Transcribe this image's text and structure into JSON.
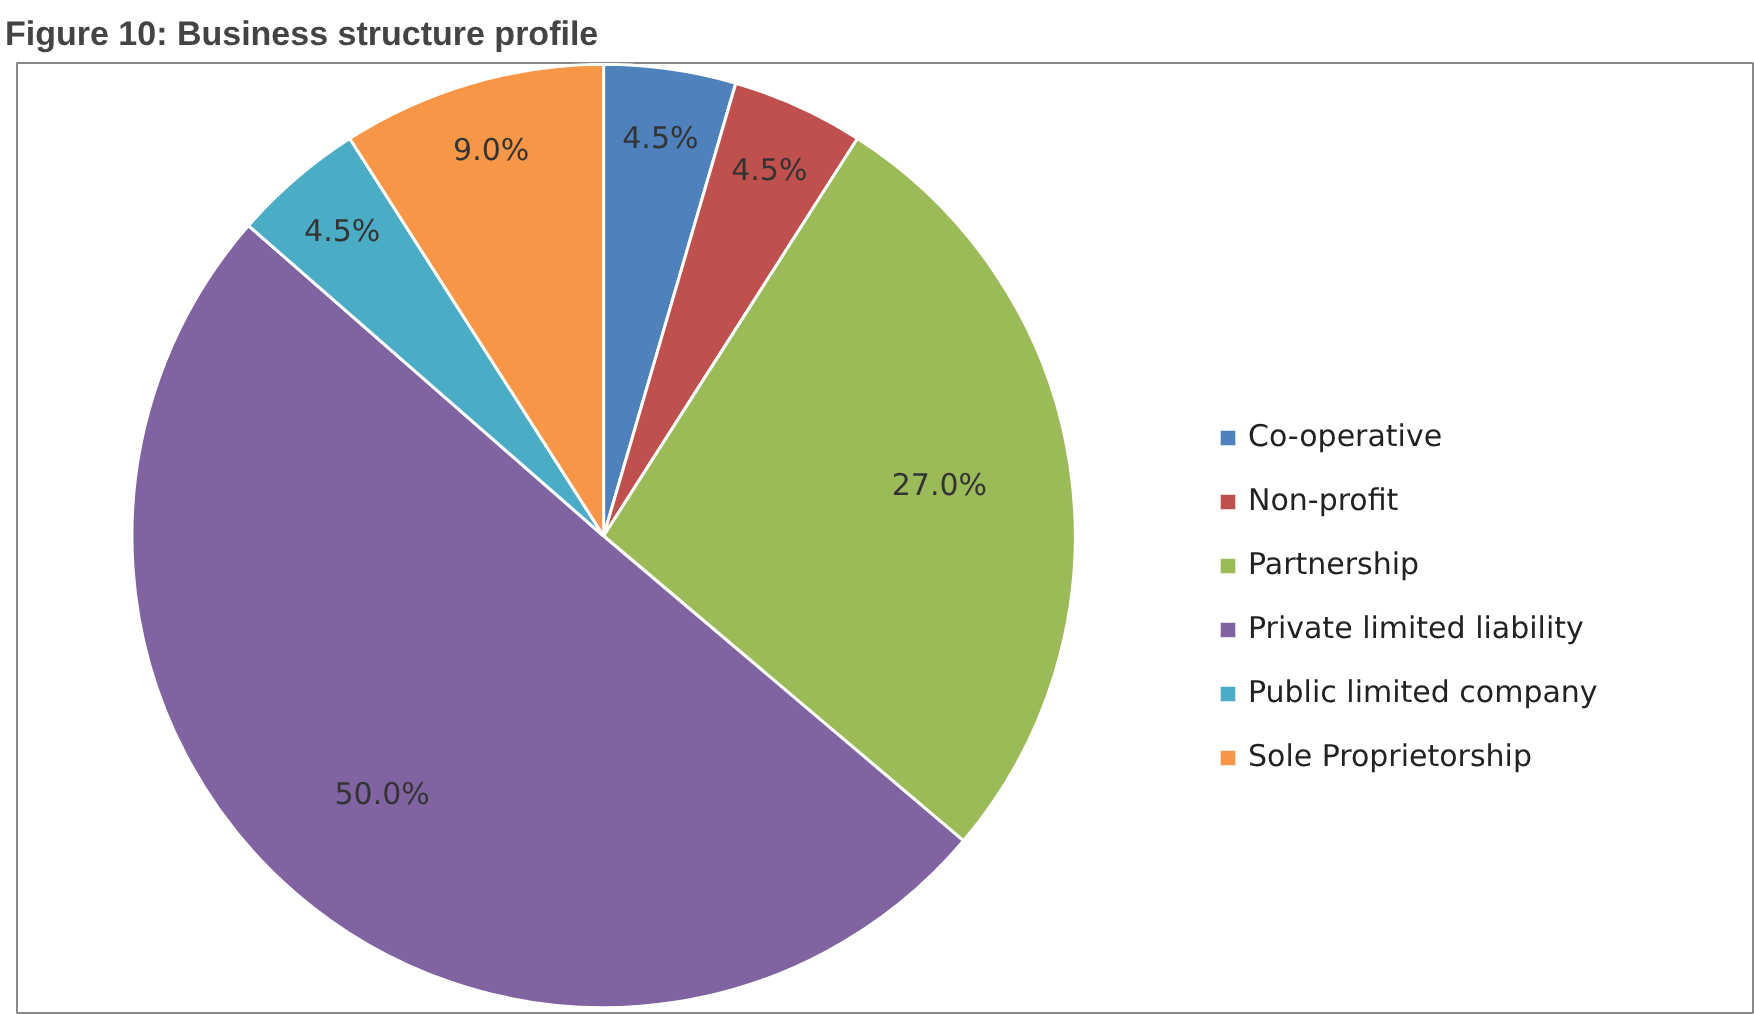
{
  "chart_data": {
    "type": "pie",
    "title": "Figure 10: Business structure profile",
    "categories": [
      "Co-operative",
      "Non-profit",
      "Partnership",
      "Private limited liability",
      "Public limited company",
      "Sole Proprietorship"
    ],
    "values": [
      4.5,
      4.5,
      27.0,
      50.0,
      4.5,
      9.0
    ],
    "value_labels": [
      "4.5%",
      "4.5%",
      "27.0%",
      "50.0%",
      "4.5%",
      "9.0%"
    ],
    "colors": [
      "#4f81bd",
      "#c0504d",
      "#9bbb59",
      "#8064a2",
      "#4bacc6",
      "#f79646"
    ],
    "legend": "right"
  }
}
